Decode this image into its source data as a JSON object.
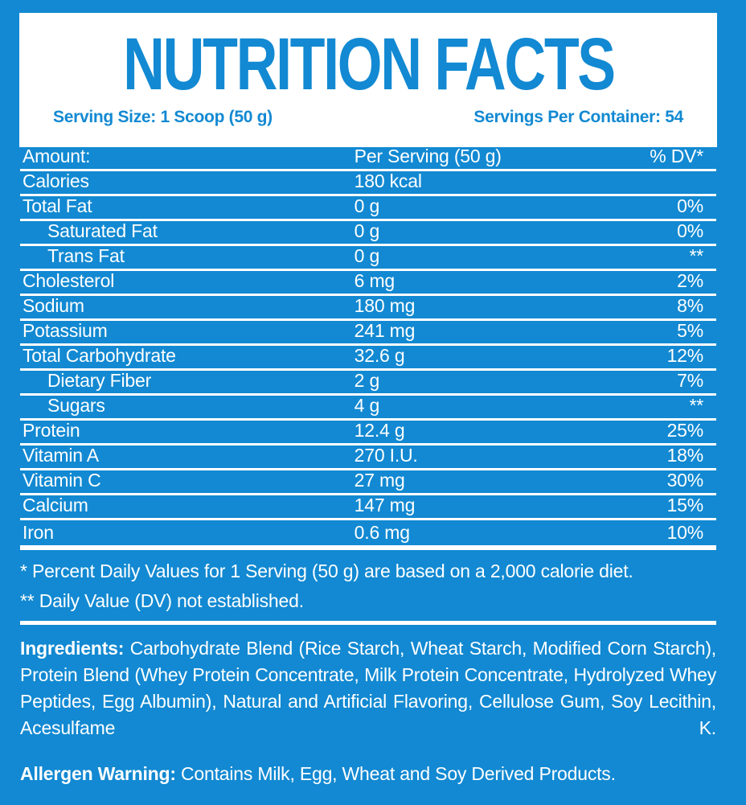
{
  "colors": {
    "background_blue": "#1289d2",
    "panel_white": "#ffffff",
    "title_blue": "#1289d2",
    "text_on_blue": "#ffffff"
  },
  "header": {
    "title": "NUTRITION FACTS",
    "serving_size": "Serving Size: 1 Scoop (50 g)",
    "servings_per_container": "Servings Per Container: 54"
  },
  "table": {
    "columns": [
      "Amount:",
      "Per Serving (50 g)",
      "% DV*"
    ],
    "rows": [
      {
        "label": "Calories",
        "amount": "180 kcal",
        "dv": ""
      },
      {
        "label": "Total Fat",
        "amount": "0 g",
        "dv": "0%"
      },
      {
        "label": "Saturated Fat",
        "amount": "0 g",
        "dv": "0%"
      },
      {
        "label": "Trans Fat",
        "amount": "0 g",
        "dv": "**"
      },
      {
        "label": "Cholesterol",
        "amount": "6 mg",
        "dv": "2%"
      },
      {
        "label": "Sodium",
        "amount": "180 mg",
        "dv": "8%"
      },
      {
        "label": "Potassium",
        "amount": "241 mg",
        "dv": "5%"
      },
      {
        "label": "Total Carbohydrate",
        "amount": "32.6 g",
        "dv": "12%"
      },
      {
        "label": "Dietary Fiber",
        "amount": "2 g",
        "dv": "7%"
      },
      {
        "label": "Sugars",
        "amount": "4 g",
        "dv": "**"
      },
      {
        "label": "Protein",
        "amount": "12.4 g",
        "dv": "25%"
      },
      {
        "label": "Vitamin A",
        "amount": "270 I.U.",
        "dv": "18%"
      },
      {
        "label": "Vitamin C",
        "amount": "27 mg",
        "dv": "30%"
      },
      {
        "label": "Calcium",
        "amount": "147 mg",
        "dv": "15%"
      },
      {
        "label": "Iron",
        "amount": "0.6 mg",
        "dv": "10%"
      }
    ]
  },
  "footnotes": [
    "* Percent Daily Values for 1 Serving (50 g) are based on a 2,000 calorie diet.",
    "** Daily Value (DV) not established."
  ],
  "ingredients": {
    "label": "Ingredients:",
    "text": "Carbohydrate Blend (Rice Starch, Wheat Starch, Modified Corn Starch), Protein Blend (Whey Protein Concentrate, Milk Protein Concentrate, Hydrolyzed Whey Peptides, Egg Albumin), Natural and Artificial Flavoring, Cellulose Gum, Soy Lecithin, Acesulfame K."
  },
  "allergen": {
    "label": "Allergen Warning:",
    "text": "Contains Milk, Egg, Wheat and Soy Derived Products."
  }
}
